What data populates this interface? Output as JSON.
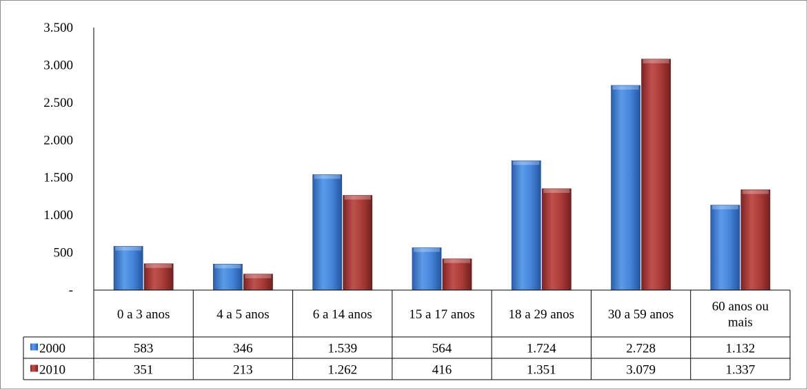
{
  "chart_data": {
    "type": "bar",
    "categories": [
      "0 a 3 anos",
      "4 a 5 anos",
      "6 a 14 anos",
      "15 a 17 anos",
      "18 a 29 anos",
      "30 a 59 anos",
      "60 anos ou mais"
    ],
    "category_lines": [
      [
        "0 a 3 anos"
      ],
      [
        "4 a 5 anos"
      ],
      [
        "6 a 14 anos"
      ],
      [
        "15 a 17 anos"
      ],
      [
        "18 a 29 anos"
      ],
      [
        "30 a 59 anos"
      ],
      [
        "60 anos ou",
        "mais"
      ]
    ],
    "series": [
      {
        "name": "2000",
        "color": "#3d7fd6",
        "values": [
          583,
          346,
          1539,
          564,
          1724,
          2728,
          1132
        ],
        "labels": [
          "583",
          "346",
          "1.539",
          "564",
          "1.724",
          "2.728",
          "1.132"
        ]
      },
      {
        "name": "2010",
        "color": "#a93a38",
        "values": [
          351,
          213,
          1262,
          416,
          1351,
          3079,
          1337
        ],
        "labels": [
          "351",
          "213",
          "1.262",
          "416",
          "1.351",
          "3.079",
          "1.337"
        ]
      }
    ],
    "ylim": [
      0,
      3500
    ],
    "yticks": [
      0,
      500,
      1000,
      1500,
      2000,
      2500,
      3000,
      3500
    ],
    "ytick_labels": [
      "-",
      "500",
      "1.000",
      "1.500",
      "2.000",
      "2.500",
      "3.000",
      "3.500"
    ],
    "legend_placement": "data-table",
    "grid": false
  }
}
